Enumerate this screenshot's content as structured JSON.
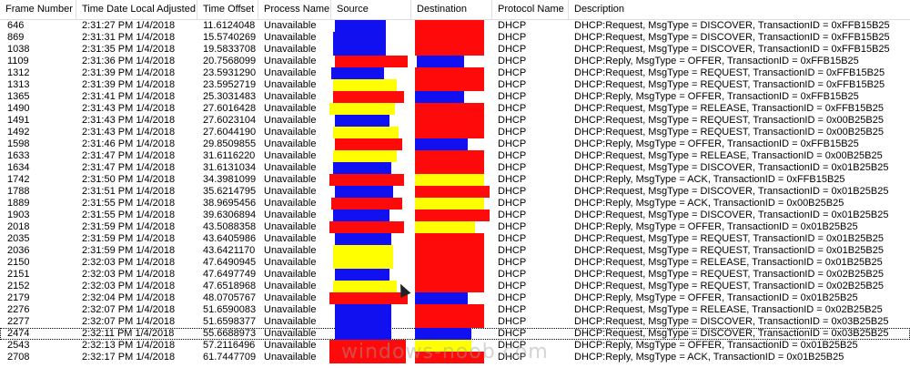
{
  "columns": [
    {
      "key": "frame",
      "label": "Frame Number"
    },
    {
      "key": "time",
      "label": "Time Date Local Adjusted"
    },
    {
      "key": "offset",
      "label": "Time Offset"
    },
    {
      "key": "process",
      "label": "Process Name"
    },
    {
      "key": "source",
      "label": "Source"
    },
    {
      "key": "dest",
      "label": "Destination"
    },
    {
      "key": "protocol",
      "label": "Protocol Name"
    },
    {
      "key": "desc",
      "label": "Description"
    }
  ],
  "rows": [
    {
      "frame": "646",
      "time": "2:31:27 PM 1/4/2018",
      "offset": "11.6124048",
      "process": "Unavailable",
      "protocol": "DHCP",
      "desc": "DHCP:Request, MsgType = DISCOVER, TransactionID = 0xFFB15B25"
    },
    {
      "frame": "869",
      "time": "2:31:31 PM 1/4/2018",
      "offset": "15.5740269",
      "process": "Unavailable",
      "protocol": "DHCP",
      "desc": "DHCP:Request, MsgType = DISCOVER, TransactionID = 0xFFB15B25"
    },
    {
      "frame": "1038",
      "time": "2:31:35 PM 1/4/2018",
      "offset": "19.5833708",
      "process": "Unavailable",
      "protocol": "DHCP",
      "desc": "DHCP:Request, MsgType = DISCOVER, TransactionID = 0xFFB15B25"
    },
    {
      "frame": "1109",
      "time": "2:31:36 PM 1/4/2018",
      "offset": "20.7568099",
      "process": "Unavailable",
      "protocol": "DHCP",
      "desc": "DHCP:Reply, MsgType = OFFER, TransactionID = 0xFFB15B25"
    },
    {
      "frame": "1312",
      "time": "2:31:39 PM 1/4/2018",
      "offset": "23.5931290",
      "process": "Unavailable",
      "protocol": "DHCP",
      "desc": "DHCP:Request, MsgType = REQUEST, TransactionID = 0xFFB15B25"
    },
    {
      "frame": "1313",
      "time": "2:31:39 PM 1/4/2018",
      "offset": "23.5952719",
      "process": "Unavailable",
      "protocol": "DHCP",
      "desc": "DHCP:Request, MsgType = REQUEST, TransactionID = 0xFFB15B25"
    },
    {
      "frame": "1365",
      "time": "2:31:41 PM 1/4/2018",
      "offset": "25.3031483",
      "process": "Unavailable",
      "protocol": "DHCP",
      "desc": "DHCP:Reply, MsgType = OFFER, TransactionID = 0xFFB15B25"
    },
    {
      "frame": "1490",
      "time": "2:31:43 PM 1/4/2018",
      "offset": "27.6016428",
      "process": "Unavailable",
      "protocol": "DHCP",
      "desc": "DHCP:Request, MsgType = RELEASE, TransactionID = 0xFFB15B25"
    },
    {
      "frame": "1491",
      "time": "2:31:43 PM 1/4/2018",
      "offset": "27.6023104",
      "process": "Unavailable",
      "protocol": "DHCP",
      "desc": "DHCP:Request, MsgType = REQUEST, TransactionID = 0x00B25B25"
    },
    {
      "frame": "1492",
      "time": "2:31:43 PM 1/4/2018",
      "offset": "27.6044190",
      "process": "Unavailable",
      "protocol": "DHCP",
      "desc": "DHCP:Request, MsgType = REQUEST, TransactionID = 0x00B25B25"
    },
    {
      "frame": "1598",
      "time": "2:31:46 PM 1/4/2018",
      "offset": "29.8509855",
      "process": "Unavailable",
      "protocol": "DHCP",
      "desc": "DHCP:Reply, MsgType = OFFER, TransactionID = 0xFFB15B25"
    },
    {
      "frame": "1633",
      "time": "2:31:47 PM 1/4/2018",
      "offset": "31.6116220",
      "process": "Unavailable",
      "protocol": "DHCP",
      "desc": "DHCP:Request, MsgType = RELEASE, TransactionID = 0x00B25B25"
    },
    {
      "frame": "1634",
      "time": "2:31:47 PM 1/4/2018",
      "offset": "31.6131034",
      "process": "Unavailable",
      "protocol": "DHCP",
      "desc": "DHCP:Request, MsgType = DISCOVER, TransactionID = 0x01B25B25"
    },
    {
      "frame": "1742",
      "time": "2:31:50 PM 1/4/2018",
      "offset": "34.3981099",
      "process": "Unavailable",
      "protocol": "DHCP",
      "desc": "DHCP:Reply, MsgType = ACK, TransactionID = 0xFFB15B25"
    },
    {
      "frame": "1788",
      "time": "2:31:51 PM 1/4/2018",
      "offset": "35.6214795",
      "process": "Unavailable",
      "protocol": "DHCP",
      "desc": "DHCP:Request, MsgType = DISCOVER, TransactionID = 0x01B25B25"
    },
    {
      "frame": "1889",
      "time": "2:31:55 PM 1/4/2018",
      "offset": "38.9695456",
      "process": "Unavailable",
      "protocol": "DHCP",
      "desc": "DHCP:Reply, MsgType = ACK, TransactionID = 0x00B25B25"
    },
    {
      "frame": "1903",
      "time": "2:31:55 PM 1/4/2018",
      "offset": "39.6306894",
      "process": "Unavailable",
      "protocol": "DHCP",
      "desc": "DHCP:Request, MsgType = DISCOVER, TransactionID = 0x01B25B25"
    },
    {
      "frame": "2018",
      "time": "2:31:59 PM 1/4/2018",
      "offset": "43.5088358",
      "process": "Unavailable",
      "protocol": "DHCP",
      "desc": "DHCP:Reply, MsgType = OFFER, TransactionID = 0x01B25B25"
    },
    {
      "frame": "2035",
      "time": "2:31:59 PM 1/4/2018",
      "offset": "43.6405986",
      "process": "Unavailable",
      "protocol": "DHCP",
      "desc": "DHCP:Request, MsgType = REQUEST, TransactionID = 0x01B25B25"
    },
    {
      "frame": "2036",
      "time": "2:31:59 PM 1/4/2018",
      "offset": "43.6421170",
      "process": "Unavailable",
      "protocol": "DHCP",
      "desc": "DHCP:Request, MsgType = REQUEST, TransactionID = 0x01B25B25"
    },
    {
      "frame": "2150",
      "time": "2:32:03 PM 1/4/2018",
      "offset": "47.6490945",
      "process": "Unavailable",
      "protocol": "DHCP",
      "desc": "DHCP:Request, MsgType = RELEASE, TransactionID = 0x01B25B25"
    },
    {
      "frame": "2151",
      "time": "2:32:03 PM 1/4/2018",
      "offset": "47.6497749",
      "process": "Unavailable",
      "protocol": "DHCP",
      "desc": "DHCP:Request, MsgType = REQUEST, TransactionID = 0x02B25B25"
    },
    {
      "frame": "2152",
      "time": "2:32:03 PM 1/4/2018",
      "offset": "47.6518968",
      "process": "Unavailable",
      "protocol": "DHCP",
      "desc": "DHCP:Request, MsgType = REQUEST, TransactionID = 0x02B25B25"
    },
    {
      "frame": "2179",
      "time": "2:32:04 PM 1/4/2018",
      "offset": "48.0705767",
      "process": "Unavailable",
      "protocol": "DHCP",
      "desc": "DHCP:Reply, MsgType = OFFER, TransactionID = 0x01B25B25"
    },
    {
      "frame": "2276",
      "time": "2:32:07 PM 1/4/2018",
      "offset": "51.6590083",
      "process": "Unavailable",
      "protocol": "DHCP",
      "desc": "DHCP:Request, MsgType = RELEASE, TransactionID = 0x02B25B25"
    },
    {
      "frame": "2277",
      "time": "2:32:07 PM 1/4/2018",
      "offset": "51.6598377",
      "process": "Unavailable",
      "protocol": "DHCP",
      "desc": "DHCP:Request, MsgType = DISCOVER, TransactionID = 0x03B25B25"
    },
    {
      "frame": "2474",
      "time": "2:32:11 PM 1/4/2018",
      "offset": "55.6688973",
      "process": "Unavailable",
      "protocol": "DHCP",
      "desc": "DHCP:Request, MsgType = DISCOVER, TransactionID = 0x03B25B25",
      "selected": true
    },
    {
      "frame": "2543",
      "time": "2:32:13 PM 1/4/2018",
      "offset": "57.2116496",
      "process": "Unavailable",
      "protocol": "DHCP",
      "desc": "DHCP:Reply, MsgType = OFFER, TransactionID = 0x01B25B25"
    },
    {
      "frame": "2708",
      "time": "2:32:17 PM 1/4/2018",
      "offset": "61.7447709",
      "process": "Unavailable",
      "protocol": "DHCP",
      "desc": "DHCP:Reply, MsgType = ACK, TransactionID = 0x01B25B25"
    }
  ],
  "redaction_colors": {
    "blue": "#1010f0",
    "red": "#ff0a0a",
    "yellow": "#ffff00"
  },
  "watermark": "windows-noob.com"
}
